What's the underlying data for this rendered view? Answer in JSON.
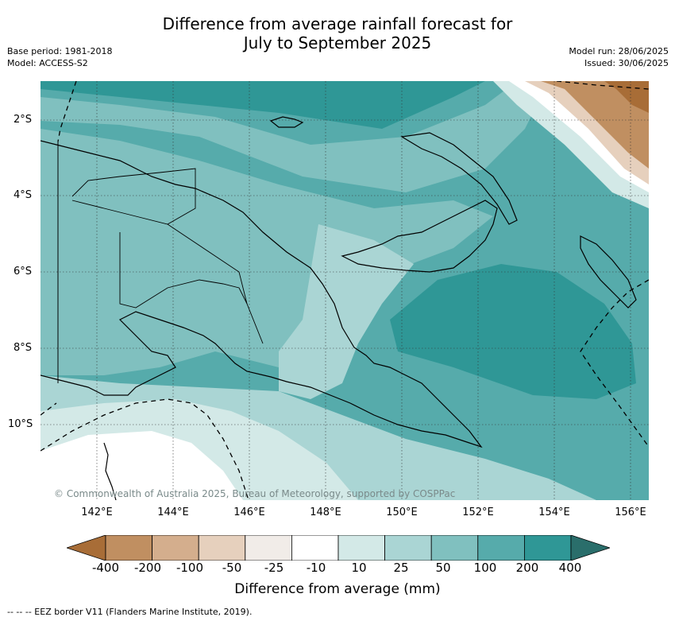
{
  "title": {
    "line1": "Difference from average rainfall forecast for",
    "line2": "July to September 2025"
  },
  "meta": {
    "base_period": "Base period: 1981-2018",
    "model": "Model: ACCESS-S2",
    "model_run": "Model run: 28/06/2025",
    "issued": "Issued: 30/06/2025"
  },
  "map": {
    "lat_labels": [
      "2°S",
      "4°S",
      "6°S",
      "8°S",
      "10°S"
    ],
    "lon_labels": [
      "142°E",
      "144°E",
      "146°E",
      "148°E",
      "150°E",
      "152°E",
      "154°E",
      "156°E"
    ],
    "copyright": "© Commonwealth of Australia 2025, Bureau of Meteorology, supported by COSPPac",
    "eez_legend": "--  --  -- EEZ border V11 (Flanders Marine Institute, 2019)."
  },
  "colorbar": {
    "label": "Difference from average (mm)",
    "ticks": [
      "-400",
      "-200",
      "-100",
      "-50",
      "-25",
      "-10",
      "10",
      "25",
      "50",
      "100",
      "200",
      "400"
    ],
    "colors": [
      "#a86d37",
      "#c08f61",
      "#d4ae8d",
      "#e6d0bd",
      "#f1ece8",
      "#ffffff",
      "#d3e9e7",
      "#aad5d4",
      "#80c0bf",
      "#56abab",
      "#2f9796",
      "#2a6e6b"
    ]
  }
}
